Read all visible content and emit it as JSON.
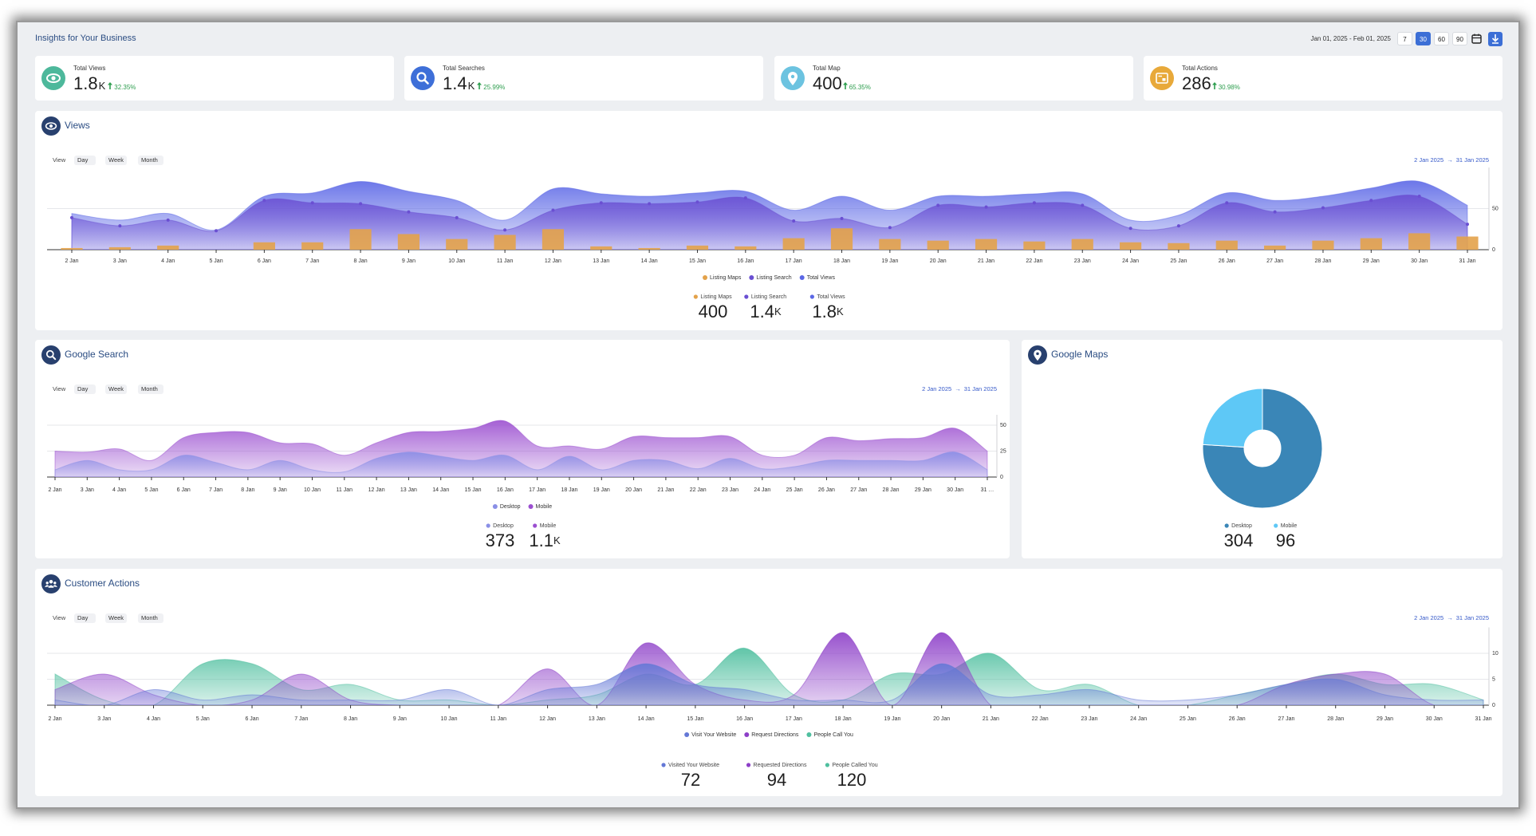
{
  "header": {
    "title": "Insights for Your Business",
    "date_range": "Jan 01, 2025 - Feb 01, 2025",
    "periods": [
      {
        "days": 7
      },
      {
        "days": 30,
        "active": true
      },
      {
        "days": 60
      },
      {
        "days": 90
      }
    ]
  },
  "kpis": [
    {
      "label": "Total Views",
      "value": 1.8,
      "unit": "K",
      "change": "32.35%",
      "color": "#4db89b"
    },
    {
      "label": "Total Searches",
      "value": 1.4,
      "unit": "K",
      "change": "25.99%",
      "color": "#3e6fd8"
    },
    {
      "label": "Total Map",
      "value": 400,
      "change": "65.35%",
      "color": "#6cc3e0"
    },
    {
      "label": "Total Actions",
      "value": 286,
      "change": "30.98%",
      "color": "#e8a93a"
    }
  ],
  "view_controls": {
    "label": "View",
    "options": [
      "Day",
      "Week",
      "Month"
    ]
  },
  "date_range": {
    "from": "2 Jan 2025",
    "separator": "→",
    "to": "31 Jan 2025"
  },
  "chart_data": [
    {
      "type": "combo",
      "title": "Views",
      "categories": [
        "2 Jan",
        "3 Jan",
        "4 Jan",
        "5 Jan",
        "6 Jan",
        "7 Jan",
        "8 Jan",
        "9 Jan",
        "10 Jan",
        "11 Jan",
        "12 Jan",
        "13 Jan",
        "14 Jan",
        "15 Jan",
        "16 Jan",
        "17 Jan",
        "18 Jan",
        "19 Jan",
        "20 Jan",
        "21 Jan",
        "22 Jan",
        "23 Jan",
        "24 Jan",
        "25 Jan",
        "26 Jan",
        "27 Jan",
        "28 Jan",
        "29 Jan",
        "30 Jan",
        "31 Jan"
      ],
      "series": [
        {
          "name": "Listing Maps",
          "kind": "bar",
          "color": "#e3a24a",
          "values": [
            2,
            3,
            5,
            0,
            9,
            9,
            25,
            19,
            13,
            18,
            25,
            4,
            2,
            5,
            4,
            14,
            26,
            13,
            11,
            13,
            10,
            13,
            9,
            8,
            11,
            5,
            11,
            14,
            20,
            16
          ]
        },
        {
          "name": "Listing Search",
          "kind": "area",
          "markers": true,
          "color": "#6a4fd2",
          "values": [
            39,
            29,
            36,
            23,
            60,
            57,
            56,
            46,
            39,
            24,
            48,
            57,
            56,
            58,
            63,
            35,
            38,
            27,
            54,
            52,
            57,
            54,
            26,
            29,
            57,
            46,
            51,
            60,
            65,
            31
          ]
        },
        {
          "name": "Total Views",
          "kind": "area",
          "color": "#5b67e6",
          "values": [
            44,
            36,
            44,
            24,
            65,
            69,
            83,
            71,
            60,
            36,
            74,
            68,
            65,
            69,
            71,
            48,
            65,
            48,
            65,
            65,
            68,
            68,
            36,
            42,
            69,
            60,
            65,
            75,
            83,
            54
          ]
        }
      ],
      "ylim": [
        0,
        100
      ],
      "yticks": [
        0,
        50
      ],
      "summary": [
        {
          "value": 400
        },
        {
          "value": 1.4,
          "unit": "K"
        },
        {
          "value": 1.8,
          "unit": "K"
        }
      ]
    },
    {
      "type": "area",
      "title": "Google Search",
      "categories": [
        "2 Jan",
        "3 Jan",
        "4 Jan",
        "5 Jan",
        "6 Jan",
        "7 Jan",
        "8 Jan",
        "9 Jan",
        "10 Jan",
        "11 Jan",
        "12 Jan",
        "13 Jan",
        "14 Jan",
        "15 Jan",
        "16 Jan",
        "17 Jan",
        "18 Jan",
        "19 Jan",
        "20 Jan",
        "21 Jan",
        "22 Jan",
        "23 Jan",
        "24 Jan",
        "25 Jan",
        "26 Jan",
        "27 Jan",
        "28 Jan",
        "29 Jan",
        "30 Jan",
        "31 …"
      ],
      "series": [
        {
          "name": "Desktop",
          "color": "#8a8fe6",
          "values": [
            7,
            16,
            7,
            7,
            21,
            14,
            7,
            16,
            7,
            5,
            18,
            24,
            20,
            16,
            21,
            7,
            20,
            7,
            16,
            16,
            8,
            18,
            8,
            10,
            16,
            16,
            16,
            16,
            24,
            7
          ]
        },
        {
          "name": "Mobile",
          "color": "#9b4fd0",
          "values": [
            25,
            24,
            27,
            16,
            38,
            43,
            43,
            33,
            32,
            21,
            33,
            43,
            44,
            47,
            54,
            30,
            30,
            27,
            39,
            38,
            38,
            39,
            21,
            21,
            38,
            35,
            37,
            38,
            47,
            25
          ]
        }
      ],
      "ylim": [
        0,
        60
      ],
      "yticks": [
        0,
        25,
        50
      ],
      "summary": [
        {
          "value": 373
        },
        {
          "value": 1.1,
          "unit": "K"
        }
      ]
    },
    {
      "type": "donut",
      "title": "Google Maps",
      "categories": [
        "Desktop",
        "Mobile"
      ],
      "values": [
        304,
        96
      ],
      "colors": [
        "#3a86b7",
        "#5ec8f6"
      ]
    },
    {
      "type": "area",
      "title": "Customer Actions",
      "categories": [
        "2 Jan",
        "3 Jan",
        "4 Jan",
        "5 Jan",
        "6 Jan",
        "7 Jan",
        "8 Jan",
        "9 Jan",
        "10 Jan",
        "11 Jan",
        "12 Jan",
        "13 Jan",
        "14 Jan",
        "15 Jan",
        "16 Jan",
        "17 Jan",
        "18 Jan",
        "19 Jan",
        "20 Jan",
        "21 Jan",
        "22 Jan",
        "23 Jan",
        "24 Jan",
        "25 Jan",
        "26 Jan",
        "27 Jan",
        "28 Jan",
        "29 Jan",
        "30 Jan",
        "31 Jan"
      ],
      "series": [
        {
          "name": "Visit Your Website",
          "color": "#6478d6",
          "values": [
            1,
            0,
            3,
            1,
            2,
            1,
            1,
            1,
            3,
            0,
            3,
            4,
            8,
            4,
            3,
            1,
            1,
            1,
            8,
            2,
            2,
            3,
            1,
            1,
            2,
            4,
            5,
            2,
            1,
            1
          ]
        },
        {
          "name": "Request Directions",
          "color": "#8d3fc8",
          "values": [
            3,
            6,
            2,
            0,
            1,
            6,
            1,
            0,
            0,
            0,
            7,
            0,
            12,
            4,
            1,
            2,
            14,
            0,
            14,
            0,
            0,
            0,
            0,
            0,
            0,
            4,
            6,
            6,
            0,
            0
          ]
        },
        {
          "name": "People Call You",
          "color": "#4fbf9f",
          "values": [
            6,
            1,
            0,
            8,
            8,
            3,
            4,
            1,
            1,
            0,
            1,
            2,
            6,
            4,
            11,
            2,
            1,
            6,
            6,
            10,
            3,
            4,
            0,
            0,
            2,
            4,
            6,
            4,
            4,
            1
          ]
        }
      ],
      "ylim": [
        0,
        15
      ],
      "yticks": [
        0,
        5,
        10
      ],
      "summary": [
        {
          "label": "Visited Your Website",
          "value": 72
        },
        {
          "label": "Requested Directions",
          "value": 94
        },
        {
          "label": "People Called You",
          "value": 120
        }
      ]
    }
  ]
}
